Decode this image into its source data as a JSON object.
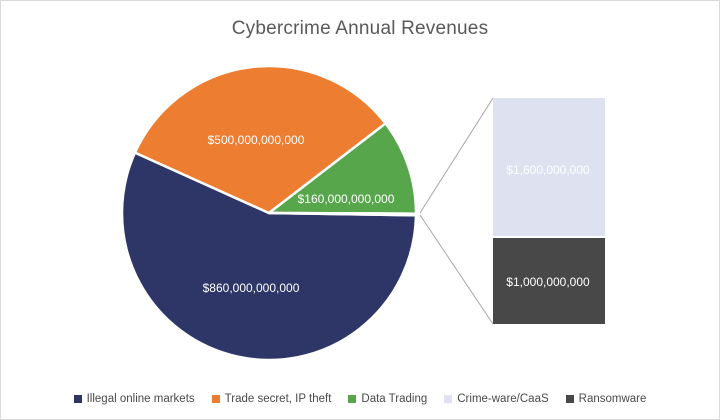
{
  "title": "Cybercrime Annual Revenues",
  "chart_data": {
    "type": "pie",
    "subtype": "bar-of-pie",
    "title": "Cybercrime Annual Revenues",
    "categories": [
      "Illegal online markets",
      "Trade secret, IP theft",
      "Data Trading",
      "Crime-ware/CaaS",
      "Ransomware"
    ],
    "values": [
      860000000000,
      500000000000,
      160000000000,
      1600000000,
      1000000000
    ],
    "labels": [
      "$860,000,000,000",
      "$500,000,000,000",
      "$160,000,000,000",
      "$1,600,000,000",
      "$1,000,000,000"
    ],
    "colors": [
      "#2d3666",
      "#ed7d31",
      "#58a64c",
      "#dee1ef",
      "#484848"
    ],
    "breakout_bar_categories": [
      "Crime-ware/CaaS",
      "Ransomware"
    ],
    "legend_position": "bottom",
    "grid": false,
    "connector_color": "#a6a6a6",
    "title_color": "#595959",
    "label_color": "#ffffff"
  }
}
